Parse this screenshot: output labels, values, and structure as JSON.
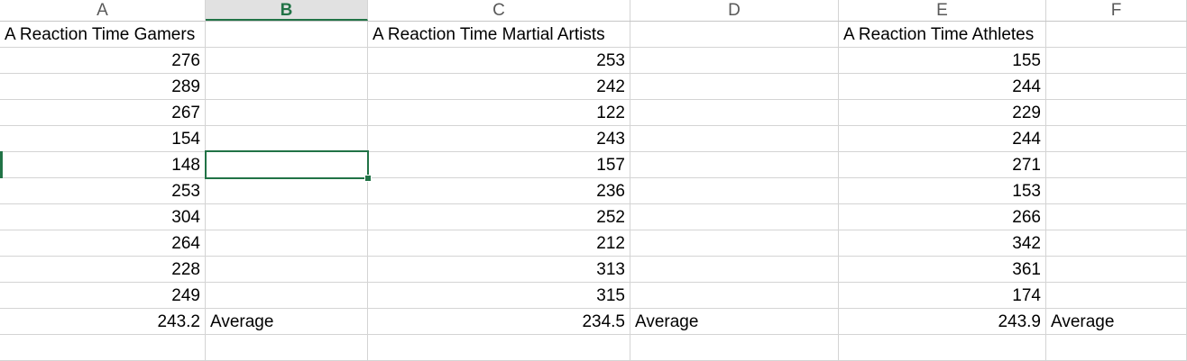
{
  "columns": [
    "A",
    "B",
    "C",
    "D",
    "E",
    "F"
  ],
  "active_column": "B",
  "headers": {
    "gamers": "A Reaction Time Gamers",
    "martial": "A Reaction Time Martial Artists",
    "athletes": "A Reaction Time Athletes"
  },
  "gamers": [
    "276",
    "289",
    "267",
    "154",
    "148",
    "253",
    "304",
    "264",
    "228",
    "249"
  ],
  "martial": [
    "253",
    "242",
    "122",
    "243",
    "157",
    "236",
    "252",
    "212",
    "313",
    "315"
  ],
  "athletes": [
    "155",
    "244",
    "229",
    "244",
    "271",
    "153",
    "266",
    "342",
    "361",
    "174"
  ],
  "averages": {
    "gamers": "243.2",
    "martial": "234.5",
    "athletes": "243.9",
    "label": "Average"
  },
  "selection": {
    "cell": "B6"
  },
  "colors": {
    "accent": "#217346",
    "grid": "#d4d4d4",
    "header_text": "#595959"
  }
}
